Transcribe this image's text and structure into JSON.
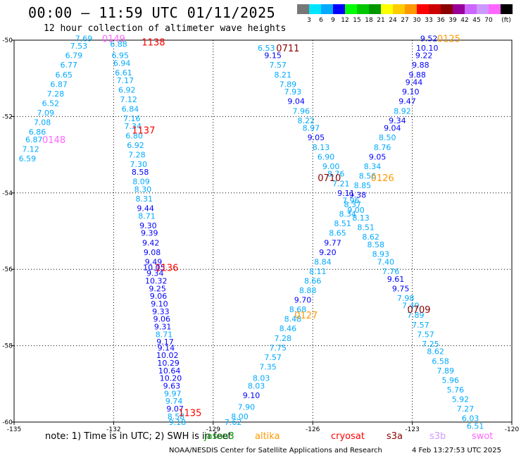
{
  "title": "00:00 – 11:59 UTC 01/11/2025",
  "subtitle": "12 hour collection of altimeter wave heights",
  "colorbar": {
    "colors": [
      "#777777",
      "#00e5ff",
      "#00aaff",
      "#0000ff",
      "#00ff00",
      "#00c800",
      "#009600",
      "#ffff00",
      "#ffcc00",
      "#ff9900",
      "#ff0000",
      "#cc0000",
      "#8b0000",
      "#990099",
      "#cc66ff",
      "#cc99ff",
      "#ff66ff",
      "#000000"
    ],
    "ticks": [
      "3",
      "6",
      "9",
      "12",
      "15",
      "18",
      "21",
      "24",
      "27",
      "30",
      "33",
      "36",
      "39",
      "42",
      "45",
      "70",
      "(ft)"
    ]
  },
  "axes": {
    "x_ticks": [
      "-135",
      "-132",
      "-129",
      "-126",
      "-123",
      "-120"
    ],
    "y_ticks": [
      "-50",
      "-52",
      "-54",
      "-56",
      "-58",
      "-60"
    ]
  },
  "passes": [
    {
      "label": "0149",
      "lon": -132.0,
      "lat": -49.95,
      "color": "#ff66ff"
    },
    {
      "label": "1138",
      "lon": -130.8,
      "lat": -50.05,
      "color": "#ff0000"
    },
    {
      "label": "0148",
      "lon": -133.8,
      "lat": -52.6,
      "color": "#ff66ff"
    },
    {
      "label": "1137",
      "lon": -131.1,
      "lat": -52.35,
      "color": "#ff0000"
    },
    {
      "label": "1136",
      "lon": -130.4,
      "lat": -55.95,
      "color": "#ff0000"
    },
    {
      "label": "1135",
      "lon": -129.7,
      "lat": -59.75,
      "color": "#ff0000"
    },
    {
      "label": "0711",
      "lon": -126.75,
      "lat": -50.2,
      "color": "#8b0000"
    },
    {
      "label": "0710",
      "lon": -125.5,
      "lat": -53.6,
      "color": "#8b0000"
    },
    {
      "label": "0709",
      "lon": -122.8,
      "lat": -57.05,
      "color": "#8b0000"
    },
    {
      "label": "0125",
      "lon": -121.9,
      "lat": -49.95,
      "color": "#ff9900"
    },
    {
      "label": "0126",
      "lon": -123.9,
      "lat": -53.6,
      "color": "#ff9900"
    },
    {
      "label": "0127",
      "lon": -126.2,
      "lat": -57.2,
      "color": "#ff9900"
    }
  ],
  "tracks": [
    {
      "name": "0148-0149",
      "points": [
        [
          -132.9,
          -49.95,
          "7.69",
          "#00aaff"
        ],
        [
          -133.05,
          -50.15,
          "7.53",
          "#00aaff"
        ],
        [
          -133.2,
          -50.4,
          "6.79",
          "#00aaff"
        ],
        [
          -133.35,
          -50.65,
          "6.77",
          "#00aaff"
        ],
        [
          -133.5,
          -50.9,
          "6.65",
          "#00aaff"
        ],
        [
          -133.65,
          -51.15,
          "6.87",
          "#00aaff"
        ],
        [
          -133.75,
          -51.4,
          "7.28",
          "#00aaff"
        ],
        [
          -133.9,
          -51.65,
          "6.52",
          "#00aaff"
        ],
        [
          -134.05,
          -51.9,
          "7.09",
          "#00aaff"
        ],
        [
          -134.15,
          -52.15,
          "7.08",
          "#00aaff"
        ],
        [
          -134.3,
          -52.4,
          "6.86",
          "#00aaff"
        ],
        [
          -134.4,
          -52.6,
          "6.87",
          "#00aaff"
        ],
        [
          -134.5,
          -52.85,
          "7.12",
          "#00aaff"
        ],
        [
          -134.6,
          -53.1,
          "6.59",
          "#00aaff"
        ]
      ]
    },
    {
      "name": "1135-1138",
      "points": [
        [
          -131.85,
          -50.1,
          "6.88",
          "#00aaff"
        ],
        [
          -131.8,
          -50.4,
          "6.95",
          "#00aaff"
        ],
        [
          -131.75,
          -50.6,
          "6.94",
          "#00aaff"
        ],
        [
          -131.7,
          -50.85,
          "6.61",
          "#00aaff"
        ],
        [
          -131.65,
          -51.05,
          "7.17",
          "#00aaff"
        ],
        [
          -131.6,
          -51.3,
          "6.92",
          "#00aaff"
        ],
        [
          -131.55,
          -51.55,
          "7.12",
          "#00aaff"
        ],
        [
          -131.5,
          -51.8,
          "6.84",
          "#00aaff"
        ],
        [
          -131.45,
          -52.05,
          "7.16",
          "#00aaff"
        ],
        [
          -131.42,
          -52.25,
          "7.34",
          "#00aaff"
        ],
        [
          -131.38,
          -52.5,
          "6.80",
          "#00aaff"
        ],
        [
          -131.34,
          -52.75,
          "6.92",
          "#00aaff"
        ],
        [
          -131.3,
          -53.0,
          "7.28",
          "#00aaff"
        ],
        [
          -131.25,
          -53.25,
          "7.30",
          "#00aaff"
        ],
        [
          -131.2,
          -53.45,
          "8.58",
          "#0000ff"
        ],
        [
          -131.17,
          -53.7,
          "8.09",
          "#00aaff"
        ],
        [
          -131.12,
          -53.9,
          "8.30",
          "#00aaff"
        ],
        [
          -131.08,
          -54.15,
          "8.31",
          "#00aaff"
        ],
        [
          -131.04,
          -54.4,
          "9.44",
          "#0000ff"
        ],
        [
          -131.0,
          -54.6,
          "8.71",
          "#00aaff"
        ],
        [
          -130.96,
          -54.85,
          "9.30",
          "#0000ff"
        ],
        [
          -130.92,
          -55.05,
          "9.39",
          "#0000ff"
        ],
        [
          -130.88,
          -55.3,
          "9.42",
          "#0000ff"
        ],
        [
          -130.84,
          -55.55,
          "9.08",
          "#0000ff"
        ],
        [
          -130.8,
          -55.8,
          "9.49",
          "#0000ff"
        ],
        [
          -130.78,
          -55.95,
          "10.05",
          "#0000ff"
        ],
        [
          -130.75,
          -56.1,
          "9.34",
          "#0000ff"
        ],
        [
          -130.72,
          -56.3,
          "10.32",
          "#0000ff"
        ],
        [
          -130.68,
          -56.5,
          "9.25",
          "#0000ff"
        ],
        [
          -130.65,
          -56.7,
          "9.06",
          "#0000ff"
        ],
        [
          -130.62,
          -56.9,
          "9.10",
          "#0000ff"
        ],
        [
          -130.58,
          -57.1,
          "9.33",
          "#0000ff"
        ],
        [
          -130.55,
          -57.3,
          "9.06",
          "#0000ff"
        ],
        [
          -130.52,
          -57.5,
          "9.31",
          "#0000ff"
        ],
        [
          -130.48,
          -57.7,
          "8.71",
          "#00aaff"
        ],
        [
          -130.45,
          -57.9,
          "9.17",
          "#0000ff"
        ],
        [
          -130.42,
          -58.05,
          "9.14",
          "#0000ff"
        ],
        [
          -130.38,
          -58.25,
          "10.02",
          "#0000ff"
        ],
        [
          -130.35,
          -58.45,
          "10.29",
          "#0000ff"
        ],
        [
          -130.32,
          -58.65,
          "10.64",
          "#0000ff"
        ],
        [
          -130.28,
          -58.85,
          "10.20",
          "#0000ff"
        ],
        [
          -130.25,
          -59.05,
          "9.63",
          "#0000ff"
        ],
        [
          -130.22,
          -59.25,
          "9.97",
          "#00aaff"
        ],
        [
          -130.18,
          -59.45,
          "9.74",
          "#00aaff"
        ],
        [
          -130.15,
          -59.65,
          "9.07",
          "#0000ff"
        ],
        [
          -130.12,
          -59.85,
          "8.58",
          "#00aaff"
        ],
        [
          -130.08,
          -60.0,
          "9.18",
          "#00aaff"
        ]
      ]
    },
    {
      "name": "0709-0711",
      "points": [
        [
          -127.4,
          -50.2,
          "6.53",
          "#00aaff"
        ],
        [
          -127.2,
          -50.4,
          "9.15",
          "#0000ff"
        ],
        [
          -127.05,
          -50.65,
          "7.57",
          "#00aaff"
        ],
        [
          -126.9,
          -50.9,
          "8.21",
          "#00aaff"
        ],
        [
          -126.75,
          -51.15,
          "7.89",
          "#00aaff"
        ],
        [
          -126.6,
          -51.35,
          "7.93",
          "#00aaff"
        ],
        [
          -126.5,
          -51.6,
          "9.04",
          "#0000ff"
        ],
        [
          -126.35,
          -51.85,
          "7.96",
          "#00aaff"
        ],
        [
          -126.2,
          -52.1,
          "8.22",
          "#00aaff"
        ],
        [
          -126.05,
          -52.3,
          "8.97",
          "#00aaff"
        ],
        [
          -125.9,
          -52.55,
          "9.05",
          "#0000ff"
        ],
        [
          -125.75,
          -52.8,
          "8.13",
          "#00aaff"
        ],
        [
          -125.6,
          -53.05,
          "6.90",
          "#00aaff"
        ],
        [
          -125.45,
          -53.3,
          "9.00",
          "#00aaff"
        ],
        [
          -125.3,
          -53.5,
          "8.76",
          "#00aaff"
        ],
        [
          -125.15,
          -53.75,
          "7.21",
          "#00aaff"
        ],
        [
          -125.0,
          -54.0,
          "9.11",
          "#0000ff"
        ],
        [
          -124.85,
          -54.2,
          "7.96",
          "#00aaff"
        ],
        [
          -124.7,
          -54.45,
          "9.00",
          "#00aaff"
        ],
        [
          -124.55,
          -54.65,
          "8.13",
          "#00aaff"
        ],
        [
          -124.4,
          -54.9,
          "8.51",
          "#00aaff"
        ],
        [
          -124.25,
          -55.15,
          "8.62",
          "#00aaff"
        ],
        [
          -124.1,
          -55.35,
          "8.58",
          "#00aaff"
        ],
        [
          -123.95,
          -55.6,
          "8.93",
          "#00aaff"
        ],
        [
          -123.8,
          -55.8,
          "7.40",
          "#00aaff"
        ],
        [
          -123.65,
          -56.05,
          "7.76",
          "#00aaff"
        ],
        [
          -123.5,
          -56.25,
          "9.61",
          "#0000ff"
        ],
        [
          -123.35,
          -56.5,
          "9.75",
          "#0000ff"
        ],
        [
          -123.2,
          -56.75,
          "7.98",
          "#00aaff"
        ],
        [
          -123.05,
          -56.95,
          "7.49",
          "#00aaff"
        ],
        [
          -122.9,
          -57.2,
          "7.89",
          "#00aaff"
        ],
        [
          -122.75,
          -57.45,
          "7.57",
          "#00aaff"
        ],
        [
          -122.6,
          -57.7,
          "7.57",
          "#00aaff"
        ],
        [
          -122.45,
          -57.95,
          "7.25",
          "#00aaff"
        ],
        [
          -122.3,
          -58.15,
          "8.62",
          "#00aaff"
        ],
        [
          -122.15,
          -58.4,
          "6.58",
          "#00aaff"
        ],
        [
          -122.0,
          -58.65,
          "7.89",
          "#00aaff"
        ],
        [
          -121.85,
          -58.9,
          "5.96",
          "#00aaff"
        ],
        [
          -121.7,
          -59.15,
          "5.76",
          "#00aaff"
        ],
        [
          -121.55,
          -59.4,
          "5.92",
          "#00aaff"
        ],
        [
          -121.4,
          -59.65,
          "7.27",
          "#00aaff"
        ],
        [
          -121.25,
          -59.9,
          "6.03",
          "#00aaff"
        ],
        [
          -121.1,
          -60.1,
          "6.51",
          "#00aaff"
        ]
      ]
    },
    {
      "name": "0125-0127",
      "points": [
        [
          -122.5,
          -49.95,
          "9.52",
          "#0000ff"
        ],
        [
          -122.55,
          -50.2,
          "10.10",
          "#0000ff"
        ],
        [
          -122.65,
          -50.4,
          "9.22",
          "#0000ff"
        ],
        [
          -122.75,
          -50.65,
          "9.88",
          "#0000ff"
        ],
        [
          -122.85,
          -50.9,
          "9.88",
          "#0000ff"
        ],
        [
          -122.95,
          -51.1,
          "9.44",
          "#0000ff"
        ],
        [
          -123.05,
          -51.35,
          "9.10",
          "#0000ff"
        ],
        [
          -123.15,
          -51.6,
          "9.47",
          "#0000ff"
        ],
        [
          -123.3,
          -51.85,
          "8.92",
          "#00aaff"
        ],
        [
          -123.45,
          -52.1,
          "9.34",
          "#0000ff"
        ],
        [
          -123.6,
          -52.3,
          "9.04",
          "#0000ff"
        ],
        [
          -123.75,
          -52.55,
          "8.50",
          "#00aaff"
        ],
        [
          -123.9,
          -52.8,
          "8.76",
          "#00aaff"
        ],
        [
          -124.05,
          -53.05,
          "9.05",
          "#0000ff"
        ],
        [
          -124.2,
          -53.3,
          "8.34",
          "#00aaff"
        ],
        [
          -124.35,
          -53.55,
          "8.56",
          "#00aaff"
        ],
        [
          -124.5,
          -53.8,
          "8.85",
          "#00aaff"
        ],
        [
          -124.65,
          -54.05,
          "9.38",
          "#0000ff"
        ],
        [
          -124.8,
          -54.3,
          "8.37",
          "#00aaff"
        ],
        [
          -124.95,
          -54.55,
          "8.34",
          "#00aaff"
        ],
        [
          -125.1,
          -54.8,
          "8.51",
          "#00aaff"
        ],
        [
          -125.25,
          -55.05,
          "8.65",
          "#00aaff"
        ],
        [
          -125.4,
          -55.3,
          "9.77",
          "#0000ff"
        ],
        [
          -125.55,
          -55.55,
          "9.20",
          "#0000ff"
        ],
        [
          -125.7,
          -55.8,
          "8.84",
          "#00aaff"
        ],
        [
          -125.85,
          -56.05,
          "8.11",
          "#00aaff"
        ],
        [
          -126.0,
          -56.3,
          "8.66",
          "#00aaff"
        ],
        [
          -126.15,
          -56.55,
          "8.88",
          "#00aaff"
        ],
        [
          -126.3,
          -56.8,
          "9.70",
          "#0000ff"
        ],
        [
          -126.45,
          -57.05,
          "8.68",
          "#00aaff"
        ],
        [
          -126.6,
          -57.3,
          "8.48",
          "#00aaff"
        ],
        [
          -126.75,
          -57.55,
          "8.46",
          "#00aaff"
        ],
        [
          -126.9,
          -57.8,
          "7.28",
          "#00aaff"
        ],
        [
          -127.05,
          -58.05,
          "7.75",
          "#00aaff"
        ],
        [
          -127.2,
          -58.3,
          "7.57",
          "#00aaff"
        ],
        [
          -127.35,
          -58.55,
          "7.35",
          "#00aaff"
        ],
        [
          -127.55,
          -58.85,
          "8.03",
          "#00aaff"
        ],
        [
          -127.7,
          -59.05,
          "8.03",
          "#00aaff"
        ],
        [
          -127.85,
          -59.3,
          "9.10",
          "#0000ff"
        ],
        [
          -128.0,
          -59.6,
          "7.90",
          "#00aaff"
        ],
        [
          -128.2,
          -59.85,
          "8.00",
          "#00aaff"
        ],
        [
          -128.4,
          -60.0,
          "7.62",
          "#00aaff"
        ]
      ]
    }
  ],
  "note": "note:  1) Time is in UTC; 2) SWH is in feet",
  "satellites": [
    {
      "name": "jason3",
      "color": "#009600"
    },
    {
      "name": "altika",
      "color": "#ff9900"
    },
    {
      "name": "cryosat",
      "color": "#ff0000"
    },
    {
      "name": "s3a",
      "color": "#8b0000"
    },
    {
      "name": "s3b",
      "color": "#cc99ff"
    },
    {
      "name": "swot",
      "color": "#ff66ff"
    }
  ],
  "footer": {
    "credit": "NOAA/NESDIS Center for Satellite Applications and Research",
    "timestamp": "4 Feb 13:27:53 UTC 2025"
  }
}
